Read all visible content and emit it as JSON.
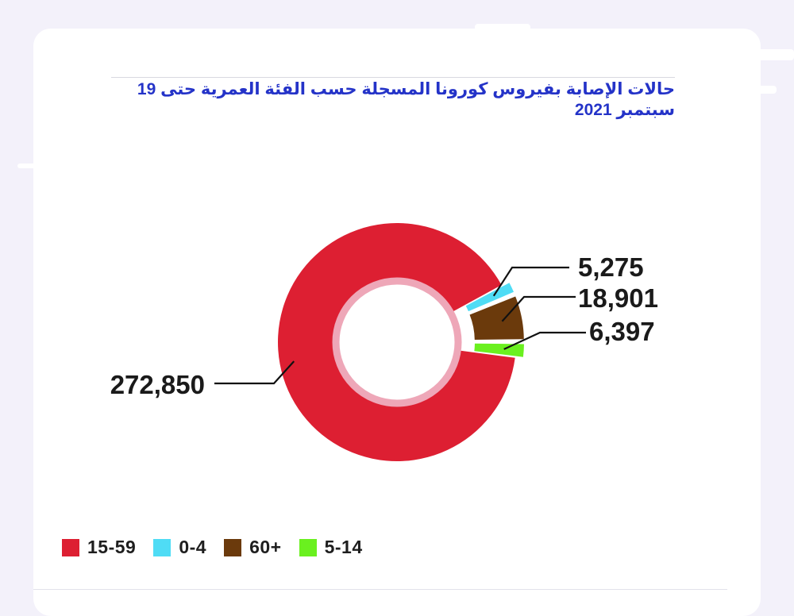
{
  "chart_data": {
    "type": "pie",
    "title": "حالات الإصابة بفيروس كورونا المسجلة حسب الفئة العمرية حتى 19 سبتمبر 2021",
    "categories": [
      "15-59",
      "0-4",
      "60+",
      "5-14"
    ],
    "values": [
      272850,
      5275,
      18901,
      6397
    ],
    "data_labels": [
      "272,850",
      "5,275",
      "18,901",
      "6,397"
    ],
    "colors": [
      "#dd1f32",
      "#4fdcf5",
      "#6b3a0c",
      "#6af01f"
    ],
    "donut": true,
    "inner_ring_color": "#eea7b8",
    "legend_position": "bottom-left"
  },
  "legend": {
    "items": [
      {
        "label": "15-59",
        "color": "#dd1f32"
      },
      {
        "label": "0-4",
        "color": "#4fdcf5"
      },
      {
        "label": "60+",
        "color": "#6b3a0c"
      },
      {
        "label": "5-14",
        "color": "#6af01f"
      }
    ]
  }
}
